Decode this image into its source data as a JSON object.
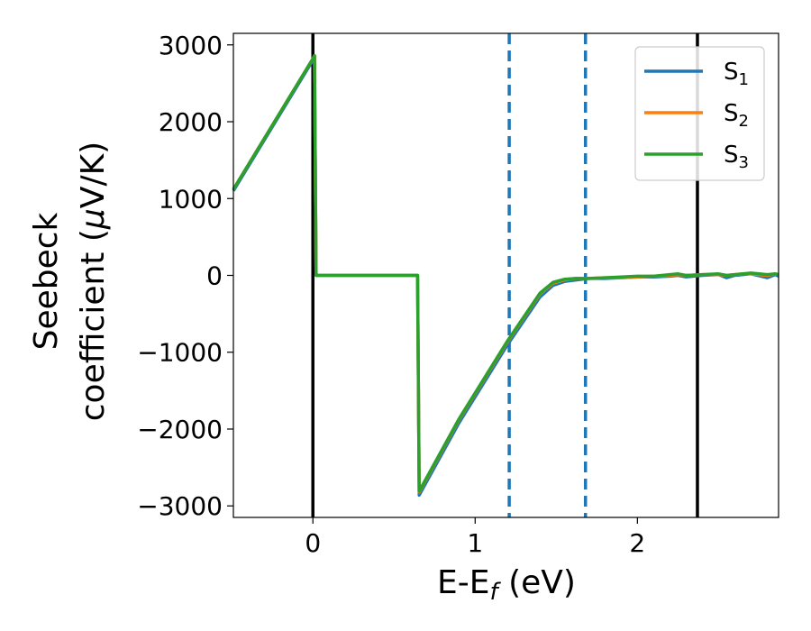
{
  "chart_data": {
    "type": "line",
    "xlabel": {
      "base": "E-E",
      "subscript": "f",
      "rest": " (eV)"
    },
    "ylabel": {
      "line1": "Seebeck",
      "line2_pre": "coefficient  (",
      "line2_mu": "μ",
      "line2_post": "V/K)"
    },
    "xlim": [
      -0.49,
      2.87
    ],
    "ylim": [
      -3150,
      3150
    ],
    "x_ticks": [
      0,
      1,
      2
    ],
    "x_tick_labels": [
      "0",
      "1",
      "2"
    ],
    "y_ticks": [
      3000,
      2000,
      1000,
      0,
      -1000,
      -2000,
      -3000
    ],
    "y_tick_labels": [
      "3000",
      "2000",
      "1000",
      "0",
      "−1000",
      "−2000",
      "−3000"
    ],
    "vertical_lines": [
      {
        "x": 0.0,
        "style": "solid",
        "color": "#000000"
      },
      {
        "x": 2.37,
        "style": "solid",
        "color": "#000000"
      },
      {
        "x": 1.21,
        "style": "dashed",
        "color": "#1f77b4"
      },
      {
        "x": 1.68,
        "style": "dashed",
        "color": "#1f77b4"
      }
    ],
    "legend": {
      "position": "top-right"
    },
    "series": [
      {
        "name": "S",
        "subscript": "1",
        "color": "#1f77b4",
        "x": [
          -0.49,
          0.0,
          0.01,
          0.02,
          0.3,
          0.645,
          0.655,
          0.9,
          1.2,
          1.4,
          1.48,
          1.55,
          1.62,
          1.7,
          1.8,
          1.9,
          2.0,
          2.1,
          2.2,
          2.25,
          2.3,
          2.4,
          2.5,
          2.55,
          2.6,
          2.65,
          2.7,
          2.8,
          2.85,
          2.87
        ],
        "y": [
          1100,
          2800,
          2850,
          0,
          0,
          0,
          -2860,
          -1920,
          -900,
          -280,
          -130,
          -80,
          -60,
          -40,
          -40,
          -30,
          -20,
          -20,
          -10,
          0,
          -20,
          0,
          10,
          -30,
          0,
          10,
          20,
          -30,
          10,
          -10
        ]
      },
      {
        "name": "S",
        "subscript": "2",
        "color": "#ff7f0e",
        "x": [
          -0.49,
          0.0,
          0.01,
          0.02,
          0.3,
          0.645,
          0.655,
          0.9,
          1.2,
          1.4,
          1.48,
          1.55,
          1.62,
          1.7,
          1.8,
          1.9,
          2.0,
          2.1,
          2.2,
          2.25,
          2.3,
          2.4,
          2.5,
          2.55,
          2.6,
          2.65,
          2.7,
          2.8,
          2.85,
          2.87
        ],
        "y": [
          1120,
          2820,
          2860,
          0,
          0,
          0,
          -2820,
          -1880,
          -860,
          -240,
          -100,
          -60,
          -40,
          -40,
          -30,
          -30,
          -20,
          -10,
          0,
          10,
          0,
          10,
          10,
          0,
          10,
          20,
          20,
          0,
          20,
          10
        ]
      },
      {
        "name": "S",
        "subscript": "3",
        "color": "#2ca02c",
        "x": [
          -0.49,
          0.0,
          0.01,
          0.02,
          0.3,
          0.645,
          0.655,
          0.9,
          1.2,
          1.4,
          1.48,
          1.55,
          1.62,
          1.7,
          1.8,
          1.9,
          2.0,
          2.1,
          2.2,
          2.25,
          2.3,
          2.4,
          2.5,
          2.55,
          2.6,
          2.65,
          2.7,
          2.8,
          2.85,
          2.87
        ],
        "y": [
          1120,
          2820,
          2860,
          0,
          0,
          0,
          -2810,
          -1870,
          -850,
          -230,
          -90,
          -50,
          -40,
          -40,
          -30,
          -20,
          -10,
          -10,
          10,
          20,
          0,
          10,
          20,
          0,
          10,
          20,
          30,
          10,
          20,
          10
        ]
      }
    ]
  }
}
